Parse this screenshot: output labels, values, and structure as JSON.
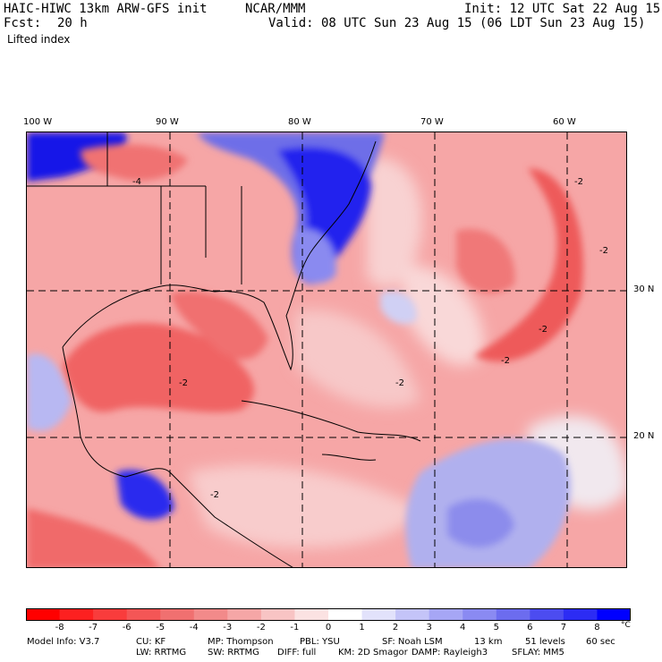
{
  "header": {
    "model": "HAIC-HIWC 13km ARW-GFS init",
    "org": "NCAR/MMM",
    "init": "Init: 12 UTC Sat 22 Aug 15",
    "fcst_label": "Fcst:",
    "fcst_value": "20 h",
    "valid": "Valid: 08 UTC Sun 23 Aug 15 (06 LDT Sun 23 Aug 15)",
    "field": "Lifted index"
  },
  "map": {
    "lon_labels": [
      "100 W",
      "90 W",
      "80 W",
      "70 W",
      "60 W"
    ],
    "lat_labels": [
      "30 N",
      "20 N"
    ],
    "contour_labels": [
      "-4",
      "-2",
      "-2",
      "-2",
      "-2",
      "-2",
      "-2",
      "-2"
    ],
    "colors": {
      "background_field": "#f6a6a6",
      "strong_negative": "#f05050",
      "cold_blue": "#2e2ef0"
    }
  },
  "colorbar": {
    "ticks": [
      "-8",
      "-7",
      "-6",
      "-5",
      "-4",
      "-3",
      "-2",
      "-1",
      "0",
      "1",
      "2",
      "3",
      "4",
      "5",
      "6",
      "7",
      "8"
    ],
    "unit": "°C",
    "colors": [
      "#ff0000",
      "#fd2020",
      "#f93c3c",
      "#f45656",
      "#f07070",
      "#f28a8a",
      "#f5a6a6",
      "#f8c4c4",
      "#fbe2e2",
      "#ffffff",
      "#e2e2fb",
      "#c4c4f8",
      "#a6a6f5",
      "#8a8af2",
      "#6c6cef",
      "#4c4cf0",
      "#2c2cf4",
      "#0000ff"
    ]
  },
  "footer": {
    "line1": [
      "Model Info: V3.7",
      "CU: KF",
      "MP: Thompson",
      "PBL: YSU",
      "SF: Noah LSM",
      "13 km",
      "51 levels",
      "60 sec"
    ],
    "line2": [
      "LW: RRTMG",
      "SW: RRTMG",
      "DIFF: full",
      "KM: 2D Smagor",
      "DAMP: Rayleigh3",
      "SFLAY: MM5"
    ]
  }
}
